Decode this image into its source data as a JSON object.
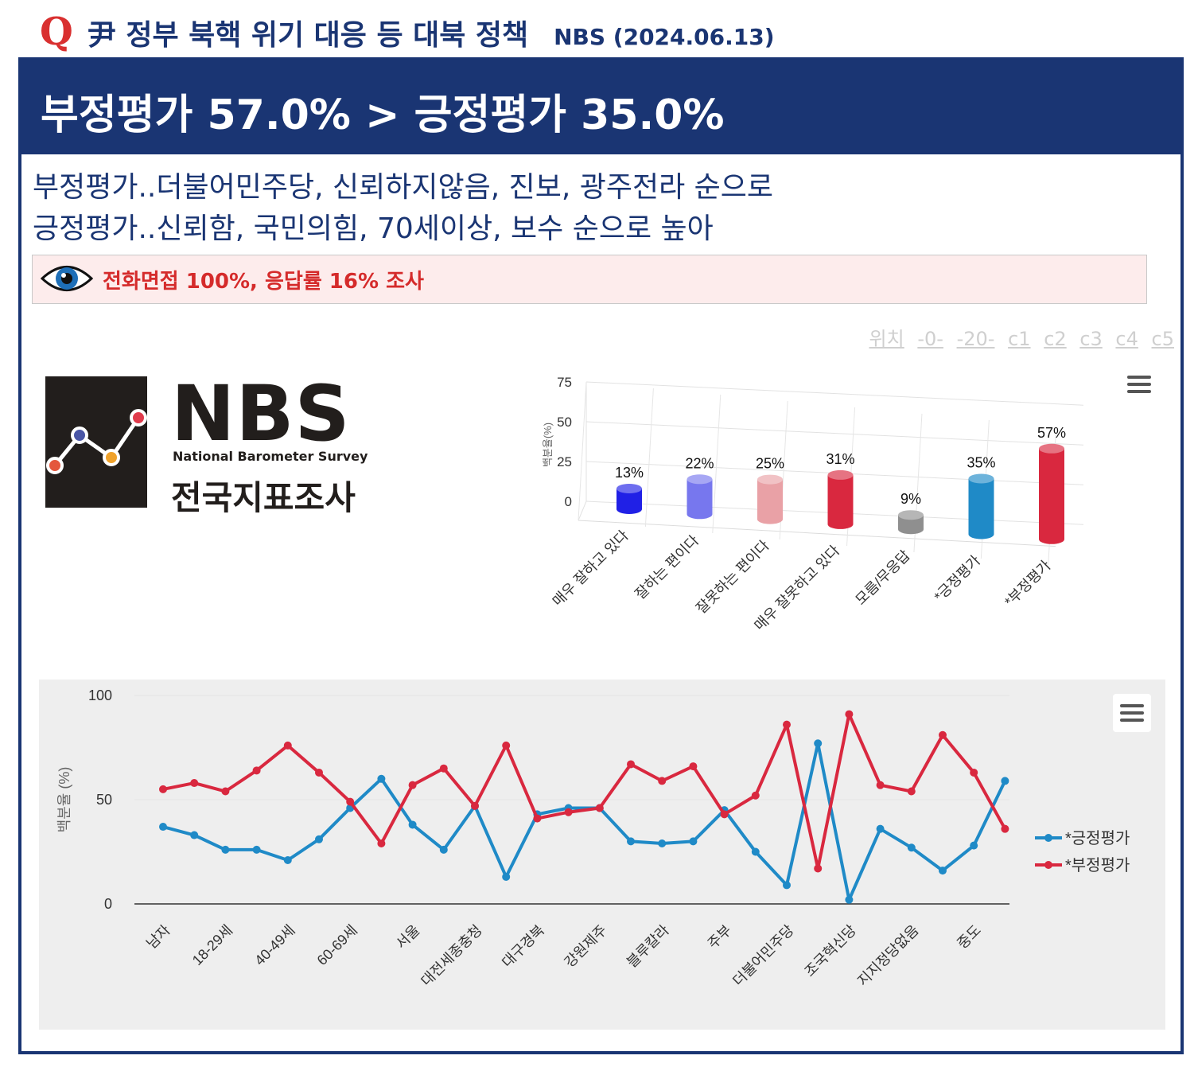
{
  "header": {
    "q_letter": "Q",
    "title": "尹 정부 북핵 위기 대응 등 대북 정책",
    "source": "NBS (2024.06.13)"
  },
  "banner": {
    "headline": "부정평가 57.0% > 긍정평가 35.0%"
  },
  "summary": {
    "line1": "부정평가..더불어민주당, 신뢰하지않음, 진보, 광주전라 순으로",
    "line2": "긍정평가..신뢰함, 국민의힘, 70세이상, 보수 순으로 높아"
  },
  "notice": {
    "text": "전화면접 100%, 응답률 16% 조사",
    "icon": "eye-icon"
  },
  "position_links": [
    "위치",
    "-0-",
    "-20-",
    "c1",
    "c2",
    "c3",
    "c4",
    "c5"
  ],
  "logo": {
    "mark": "NBS",
    "english": "National Barometer Survey",
    "korean": "전국지표조사"
  },
  "colors": {
    "navy": "#1a3573",
    "red": "#d93030",
    "pos_blue": "#1f8ac7",
    "neg_red": "#d9283f"
  },
  "chart_data": [
    {
      "type": "bar",
      "style": "3d-cylinder",
      "categories": [
        "매우 잘하고 있다",
        "잘하는 편이다",
        "잘못하는 편이다",
        "매우 잘못하고 있다",
        "모름/무응답",
        "*긍정평가",
        "*부정평가"
      ],
      "values": [
        13,
        22,
        25,
        31,
        9,
        35,
        57
      ],
      "data_labels": [
        "13%",
        "22%",
        "25%",
        "31%",
        "9%",
        "35%",
        "57%"
      ],
      "bar_colors": [
        "#2020e6",
        "#7777ee",
        "#e9a1a6",
        "#d9283f",
        "#8f8f8f",
        "#1f8ac7",
        "#d9283f"
      ],
      "ylabel": "백분율(%)",
      "ylim": [
        0,
        75
      ],
      "yticks": [
        0,
        25,
        50,
        75
      ],
      "grid": true
    },
    {
      "type": "line",
      "x_tick_labels": [
        "남자",
        "18-29세",
        "40-49세",
        "60-69세",
        "서울",
        "대전세종충청",
        "대구경북",
        "강원제주",
        "블루칼라",
        "주부",
        "더불어민주당",
        "조국혁신당",
        "지지정당없음",
        "중도"
      ],
      "point_count": 28,
      "series": [
        {
          "name": "*긍정평가",
          "color": "#1f8ac7",
          "values": [
            37,
            33,
            26,
            26,
            21,
            31,
            46,
            60,
            38,
            26,
            47,
            13,
            43,
            46,
            46,
            30,
            29,
            30,
            45,
            25,
            9,
            77,
            2,
            36,
            27,
            16,
            28,
            59
          ]
        },
        {
          "name": "*부정평가",
          "color": "#d9283f",
          "values": [
            55,
            58,
            54,
            64,
            76,
            63,
            49,
            29,
            57,
            65,
            47,
            76,
            41,
            44,
            46,
            67,
            59,
            66,
            43,
            52,
            86,
            17,
            91,
            57,
            54,
            81,
            63,
            36
          ]
        }
      ],
      "ylabel": "백분율 (%)",
      "ylim": [
        0,
        100
      ],
      "yticks": [
        0,
        50,
        100
      ],
      "legend_position": "right",
      "grid": true
    }
  ]
}
